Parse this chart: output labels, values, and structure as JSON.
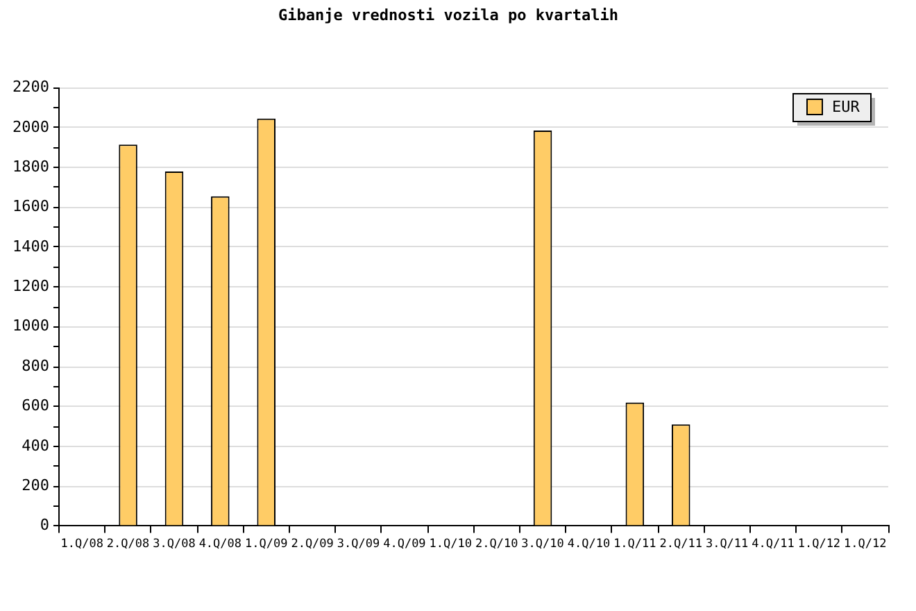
{
  "chart_data": {
    "type": "bar",
    "title": "Gibanje vrednosti vozila po kvartalih",
    "categories": [
      "1.Q/08",
      "2.Q/08",
      "3.Q/08",
      "4.Q/08",
      "1.Q/09",
      "2.Q/09",
      "3.Q/09",
      "4.Q/09",
      "1.Q/10",
      "2.Q/10",
      "3.Q/10",
      "4.Q/10",
      "1.Q/11",
      "2.Q/11",
      "3.Q/11",
      "4.Q/11",
      "1.Q/12",
      "1.Q/12"
    ],
    "series": [
      {
        "name": "EUR",
        "color": "#ffcc66",
        "values": [
          null,
          1915,
          1780,
          1655,
          2045,
          null,
          null,
          null,
          null,
          null,
          1985,
          null,
          620,
          510,
          null,
          null,
          null,
          null
        ]
      }
    ],
    "ylim": [
      0,
      2200
    ],
    "yticks": [
      0,
      {
        "value": 100,
        "label": null
      },
      200,
      {
        "value": 300,
        "label": null
      },
      400,
      {
        "value": 500,
        "label": null
      },
      600,
      {
        "value": 700,
        "label": null
      },
      800,
      {
        "value": 900,
        "label": null
      },
      1000,
      {
        "value": 1100,
        "label": null
      },
      1200,
      {
        "value": 1300,
        "label": null
      },
      1400,
      {
        "value": 1500,
        "label": null
      },
      1600,
      {
        "value": 1700,
        "label": null
      },
      1800,
      {
        "value": 1900,
        "label": null
      },
      2000,
      {
        "value": 2100,
        "label": null
      },
      2200
    ],
    "grid": "y",
    "legend": "top right"
  }
}
